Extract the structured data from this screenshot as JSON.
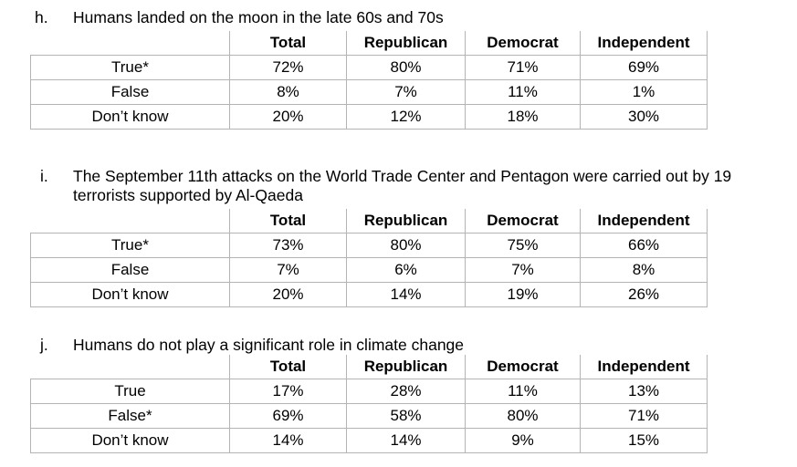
{
  "columns": [
    "Total",
    "Republican",
    "Democrat",
    "Independent"
  ],
  "questions": [
    {
      "letter": "h.",
      "text": "Humans landed on the moon in the late 60s and 70s",
      "rows": [
        {
          "label": "True*",
          "values": [
            "72%",
            "80%",
            "71%",
            "69%"
          ]
        },
        {
          "label": "False",
          "values": [
            "8%",
            "7%",
            "11%",
            "1%"
          ]
        },
        {
          "label": "Don’t know",
          "values": [
            "20%",
            "12%",
            "18%",
            "30%"
          ]
        }
      ]
    },
    {
      "letter": "i.",
      "text": "The September 11th attacks on the World Trade Center and Pentagon were carried out by 19 terrorists supported by Al-Qaeda",
      "rows": [
        {
          "label": "True*",
          "values": [
            "73%",
            "80%",
            "75%",
            "66%"
          ]
        },
        {
          "label": "False",
          "values": [
            "7%",
            "6%",
            "7%",
            "8%"
          ]
        },
        {
          "label": "Don’t know",
          "values": [
            "20%",
            "14%",
            "19%",
            "26%"
          ]
        }
      ]
    },
    {
      "letter": "j.",
      "text": "Humans do not play a significant role in climate change",
      "rows": [
        {
          "label": "True",
          "values": [
            "17%",
            "28%",
            "11%",
            "13%"
          ]
        },
        {
          "label": "False*",
          "values": [
            "69%",
            "58%",
            "80%",
            "71%"
          ]
        },
        {
          "label": "Don’t know",
          "values": [
            "14%",
            "14%",
            "9%",
            "15%"
          ]
        }
      ]
    }
  ]
}
